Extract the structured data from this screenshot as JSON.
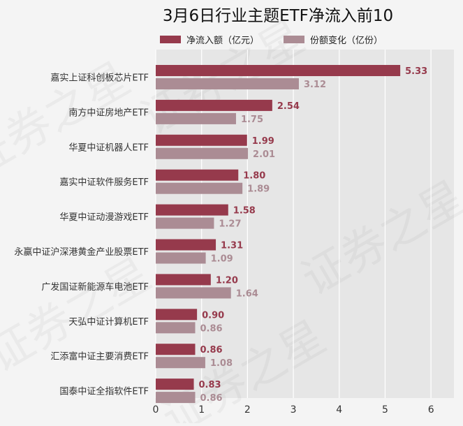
{
  "chart_data": {
    "type": "bar",
    "orientation": "horizontal",
    "title": "3月6日行业主题ETF净流入前10",
    "xlabel": "",
    "ylabel": "",
    "xlim": [
      0,
      6.5
    ],
    "xticks": [
      0,
      1,
      2,
      3,
      4,
      5,
      6
    ],
    "grid": true,
    "legend_position": "top",
    "categories": [
      "嘉实上证科创板芯片ETF",
      "南方中证房地产ETF",
      "华夏中证机器人ETF",
      "嘉实中证软件服务ETF",
      "华夏中证动漫游戏ETF",
      "永赢中证沪深港黄金产业股票ETF",
      "广发国证新能源车电池ETF",
      "天弘中证计算机ETF",
      "汇添富中证主要消费ETF",
      "国泰中证全指软件ETF"
    ],
    "series": [
      {
        "name": "净流入额（亿元）",
        "color": "#963a4c",
        "values": [
          5.33,
          2.54,
          1.99,
          1.8,
          1.58,
          1.31,
          1.2,
          0.9,
          0.86,
          0.83
        ],
        "labels": [
          "5.33",
          "2.54",
          "1.99",
          "1.80",
          "1.58",
          "1.31",
          "1.20",
          "0.90",
          "0.86",
          "0.83"
        ]
      },
      {
        "name": "份额变化（亿份）",
        "color": "#ab8c94",
        "values": [
          3.12,
          1.75,
          2.01,
          1.89,
          1.27,
          1.09,
          1.64,
          0.86,
          1.08,
          0.86
        ],
        "labels": [
          "3.12",
          "1.75",
          "2.01",
          "1.89",
          "1.27",
          "1.09",
          "1.64",
          "0.86",
          "1.08",
          "0.86"
        ]
      }
    ]
  },
  "watermark": {
    "text": "证券之星"
  }
}
